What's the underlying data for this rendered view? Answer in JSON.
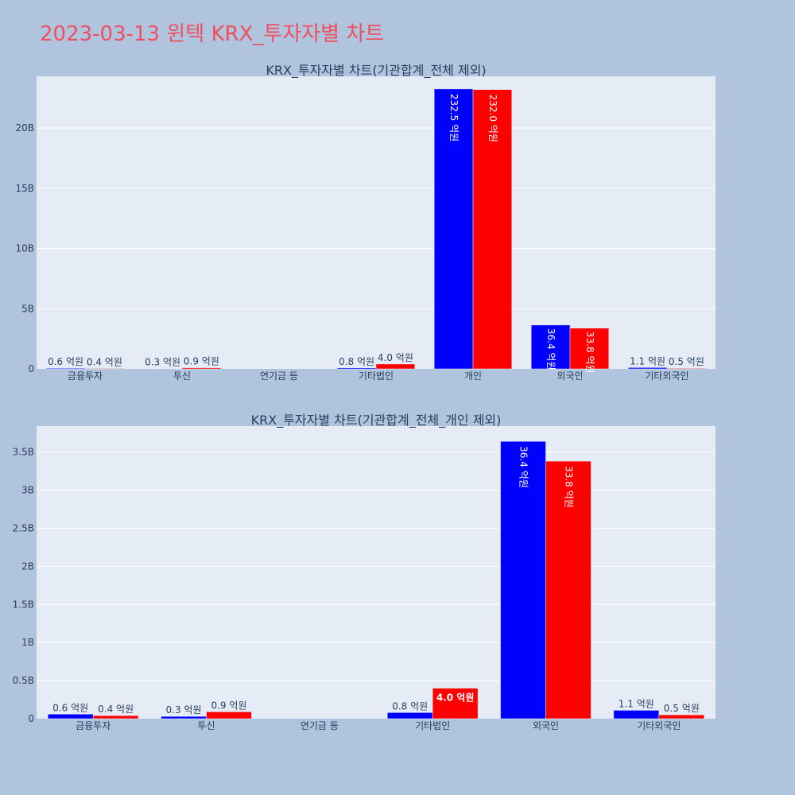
{
  "title": "2023-03-13 윈텍 KRX_투자자별 차트",
  "colors": {
    "series1": "#0000ff",
    "series2": "#ff0000",
    "plot_bg": "#e5ecf6",
    "page_bg": "#b0c4de",
    "title": "#ef4f5f"
  },
  "chart_data": [
    {
      "type": "bar",
      "title": "KRX_투자자별 차트(기관합계_전체 제외)",
      "categories": [
        "금융투자",
        "투신",
        "연기금 등",
        "기타법인",
        "개인",
        "외국인",
        "기타외국인"
      ],
      "series": [
        {
          "values": [
            60000000,
            30000000,
            0,
            80000000,
            23250000000,
            3640000000,
            110000000
          ],
          "labels": [
            "0.6 억원",
            "0.3 억원",
            "",
            "0.8 억원",
            "232.5 억원",
            "36.4 억원",
            "1.1 억원"
          ]
        },
        {
          "values": [
            40000000,
            90000000,
            0,
            400000000,
            23200000000,
            3380000000,
            50000000
          ],
          "labels": [
            "0.4 억원",
            "0.9 억원",
            "",
            "4.0 억원",
            "232.0 억원",
            "33.8 억원",
            "0.5 억원"
          ]
        }
      ],
      "ylim": [
        0,
        24300000000
      ],
      "yticks": [
        0,
        5000000000,
        10000000000,
        15000000000,
        20000000000
      ],
      "ytick_labels": [
        "0",
        "5B",
        "10B",
        "15B",
        "20B"
      ],
      "grid": true
    },
    {
      "type": "bar",
      "title": "KRX_투자자별 차트(기관합계_전체_개인 제외)",
      "categories": [
        "금융투자",
        "투신",
        "연기금 등",
        "기타법인",
        "외국인",
        "기타외국인"
      ],
      "series": [
        {
          "values": [
            60000000,
            30000000,
            0,
            80000000,
            3640000000,
            110000000
          ],
          "labels": [
            "0.6 억원",
            "0.3 억원",
            "",
            "0.8 억원",
            "36.4 억원",
            "1.1 억원"
          ]
        },
        {
          "values": [
            40000000,
            90000000,
            0,
            400000000,
            3380000000,
            50000000
          ],
          "labels": [
            "0.4 억원",
            "0.9 억원",
            "",
            "4.0 억원",
            "33.8 억원",
            "0.5 억원"
          ]
        }
      ],
      "ylim": [
        0,
        3840000000
      ],
      "yticks": [
        0,
        500000000,
        1000000000,
        1500000000,
        2000000000,
        2500000000,
        3000000000,
        3500000000
      ],
      "ytick_labels": [
        "0",
        "0.5B",
        "1B",
        "1.5B",
        "2B",
        "2.5B",
        "3B",
        "3.5B"
      ],
      "grid": true
    }
  ]
}
